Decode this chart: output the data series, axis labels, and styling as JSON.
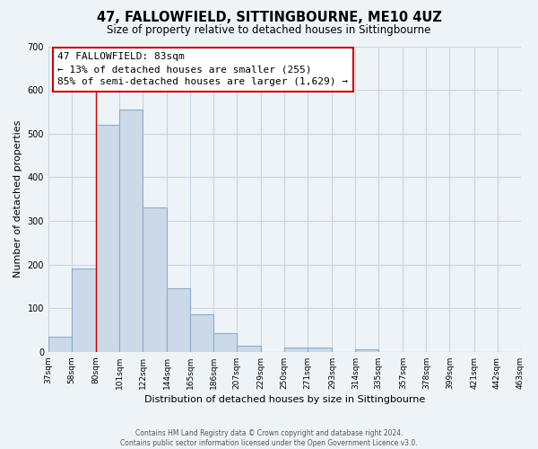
{
  "title": "47, FALLOWFIELD, SITTINGBOURNE, ME10 4UZ",
  "subtitle": "Size of property relative to detached houses in Sittingbourne",
  "xlabel": "Distribution of detached houses by size in Sittingbourne",
  "ylabel": "Number of detached properties",
  "footer_line1": "Contains HM Land Registry data © Crown copyright and database right 2024.",
  "footer_line2": "Contains public sector information licensed under the Open Government Licence v3.0.",
  "bar_edges": [
    37,
    58,
    80,
    101,
    122,
    144,
    165,
    186,
    207,
    229,
    250,
    271,
    293,
    314,
    335,
    357,
    378,
    399,
    421,
    442,
    463
  ],
  "bar_heights": [
    35,
    190,
    520,
    555,
    330,
    145,
    87,
    42,
    15,
    0,
    10,
    10,
    0,
    5,
    0,
    0,
    0,
    0,
    0,
    0
  ],
  "bar_color": "#ccd9e8",
  "bar_edgecolor": "#8aaec8",
  "vline_x": 80,
  "vline_color": "#cc0000",
  "ylim": [
    0,
    700
  ],
  "yticks": [
    0,
    100,
    200,
    300,
    400,
    500,
    600,
    700
  ],
  "x_tick_labels": [
    "37sqm",
    "58sqm",
    "80sqm",
    "101sqm",
    "122sqm",
    "144sqm",
    "165sqm",
    "186sqm",
    "207sqm",
    "229sqm",
    "250sqm",
    "271sqm",
    "293sqm",
    "314sqm",
    "335sqm",
    "357sqm",
    "378sqm",
    "399sqm",
    "421sqm",
    "442sqm",
    "463sqm"
  ],
  "annotation_title": "47 FALLOWFIELD: 83sqm",
  "annotation_line2": "← 13% of detached houses are smaller (255)",
  "annotation_line3": "85% of semi-detached houses are larger (1,629) →",
  "grid_color": "#c8d4e0",
  "background_color": "#eef3f8",
  "plot_bg_color": "#eef3f8"
}
